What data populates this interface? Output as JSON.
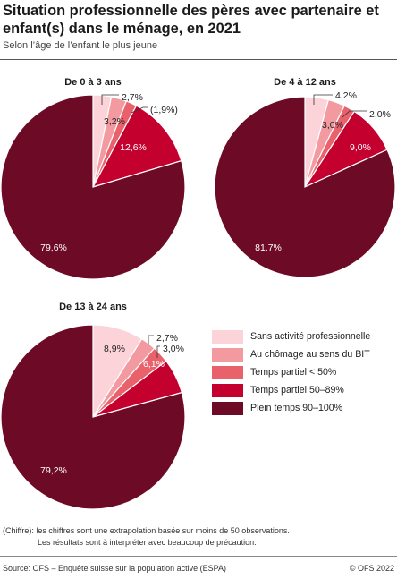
{
  "title": "Situation professionnelle des pères avec partenaire et enfant(s) dans le ménage, en 2021",
  "subtitle": "Selon l’âge de l’enfant le plus jeune",
  "colors": [
    "#fbd3d8",
    "#f29aa0",
    "#e8616b",
    "#c4002f",
    "#6d0a26"
  ],
  "chart_data": [
    {
      "type": "pie",
      "title": "De 0 à 3 ans",
      "categories": [
        "Sans activité professionnelle",
        "Au chômage au sens du BIT",
        "Temps partiel < 50%",
        "Temps partiel 50–89%",
        "Plein temps 90–100%"
      ],
      "values": [
        3.2,
        2.7,
        1.9,
        12.6,
        79.6
      ],
      "labels": [
        "3,2%",
        "2,7%",
        "(1,9%)",
        "12,6%",
        "79,6%"
      ]
    },
    {
      "type": "pie",
      "title": "De 4 à 12 ans",
      "categories": [
        "Sans activité professionnelle",
        "Au chômage au sens du BIT",
        "Temps partiel < 50%",
        "Temps partiel 50–89%",
        "Plein temps 90–100%"
      ],
      "values": [
        4.2,
        3.0,
        2.0,
        9.0,
        81.7
      ],
      "labels": [
        "4,2%",
        "3,0%",
        "2,0%",
        "9,0%",
        "81,7%"
      ]
    },
    {
      "type": "pie",
      "title": "De 13 à 24 ans",
      "categories": [
        "Sans activité professionnelle",
        "Au chômage au sens du BIT",
        "Temps partiel < 50%",
        "Temps partiel 50–89%",
        "Plein temps 90–100%"
      ],
      "values": [
        8.9,
        2.7,
        3.0,
        6.1,
        79.2
      ],
      "labels": [
        "8,9%",
        "2,7%",
        "3,0%",
        "6,1%",
        "79,2%"
      ]
    }
  ],
  "legend": [
    "Sans activité professionnelle",
    "Au chômage au sens du BIT",
    "Temps partiel < 50%",
    "Temps partiel 50–89%",
    "Plein temps 90–100%"
  ],
  "footnote": {
    "line1": "(Chiffre): les chiffres sont une extrapolation basée sur moins de 50 observations.",
    "line2": "Les résultats sont à interpréter avec beaucoup de précaution."
  },
  "source": "Source: OFS – Enquête suisse sur la population active (ESPA)",
  "copyright": "© OFS 2022"
}
